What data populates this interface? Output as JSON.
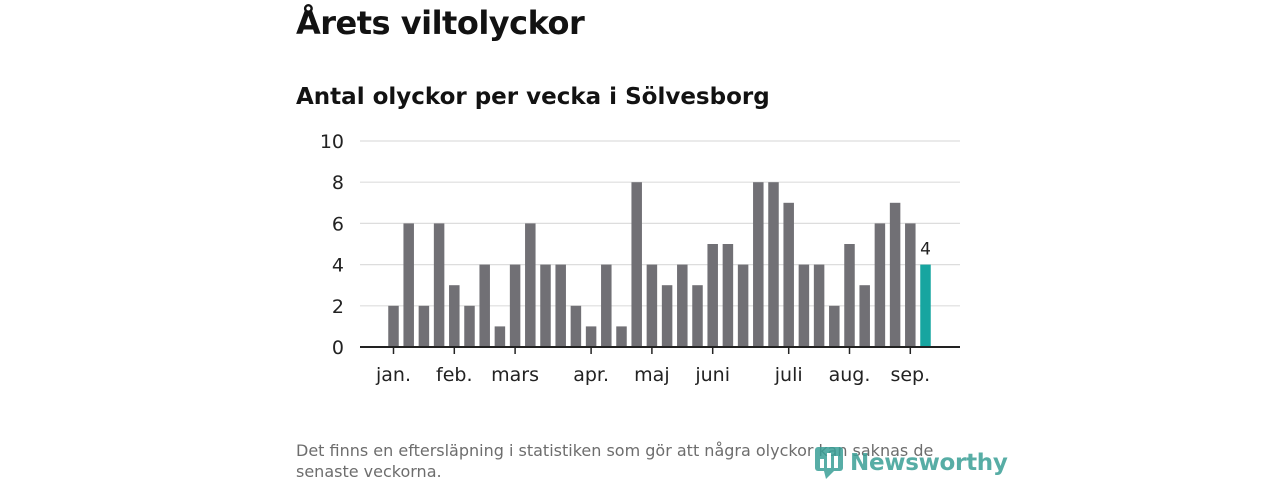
{
  "header": {
    "title": "Årets viltolyckor",
    "subtitle": "Antal olyckor per vecka i Sölvesborg"
  },
  "footnote": "Det finns en eftersläpning i statistiken som gör att några olyckor kan saknas de senaste veckorna.",
  "logo": {
    "text": "Newsworthy",
    "icon": "bar-chart-speech-icon"
  },
  "colors": {
    "bar": "#717075",
    "highlight": "#17a5a0",
    "grid": "#dddddd",
    "axis": "#222222"
  },
  "chart_data": {
    "type": "bar",
    "title": "",
    "xlabel": "",
    "ylabel": "",
    "ylim": [
      0,
      10
    ],
    "yticks": [
      0,
      2,
      4,
      6,
      8,
      10
    ],
    "grid": true,
    "x": [
      1,
      2,
      3,
      4,
      5,
      6,
      7,
      8,
      9,
      10,
      11,
      12,
      13,
      14,
      15,
      16,
      17,
      18,
      19,
      20,
      21,
      22,
      23,
      24,
      25,
      26,
      27,
      28,
      29,
      30,
      31,
      32,
      33,
      34,
      35,
      36
    ],
    "values": [
      2,
      6,
      2,
      6,
      3,
      2,
      4,
      1,
      4,
      6,
      4,
      4,
      2,
      1,
      4,
      1,
      8,
      4,
      3,
      4,
      3,
      5,
      5,
      4,
      8,
      8,
      7,
      4,
      4,
      2,
      5,
      3,
      6,
      7,
      6,
      4
    ],
    "highlight_index": 35,
    "highlight_label": "4",
    "month_ticks": [
      {
        "label": "jan.",
        "x": 1
      },
      {
        "label": "feb.",
        "x": 5
      },
      {
        "label": "mars",
        "x": 9
      },
      {
        "label": "apr.",
        "x": 14
      },
      {
        "label": "maj",
        "x": 18
      },
      {
        "label": "juni",
        "x": 22
      },
      {
        "label": "juli",
        "x": 27
      },
      {
        "label": "aug.",
        "x": 31
      },
      {
        "label": "sep.",
        "x": 35
      }
    ]
  }
}
